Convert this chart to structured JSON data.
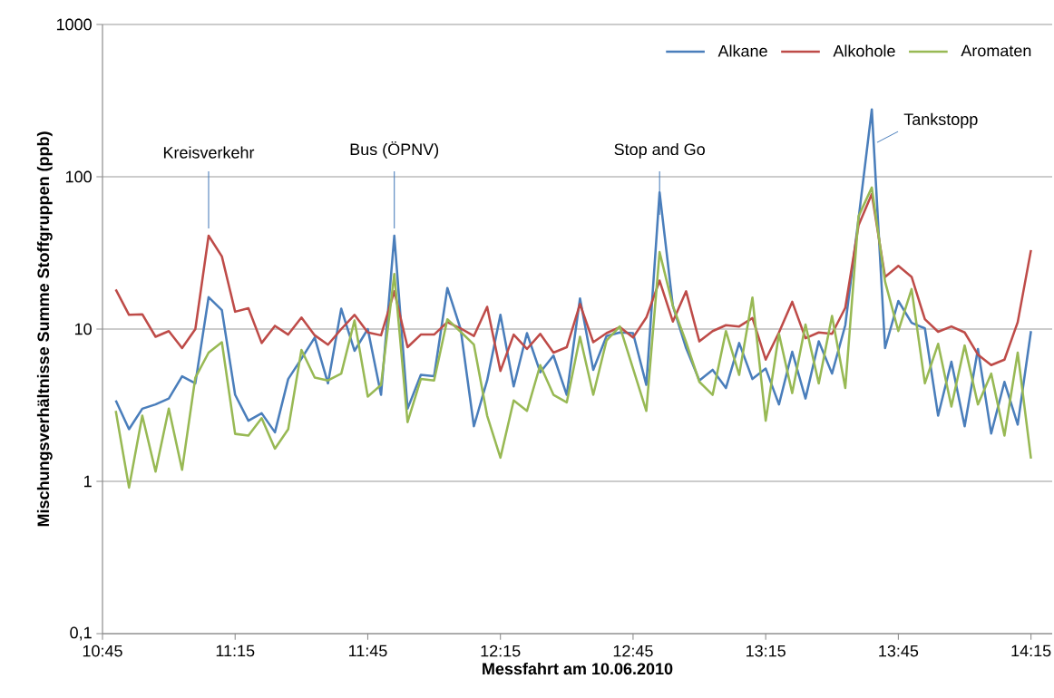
{
  "chart_data": {
    "type": "line",
    "xlabel": "Messfahrt am 10.06.2010",
    "ylabel": "Mischungsverhältnisse Summe Stoffgruppen (ppb)",
    "x": [
      10.8,
      10.85,
      10.9,
      10.95,
      11.0,
      11.05,
      11.1,
      11.15,
      11.2,
      11.25,
      11.3,
      11.35,
      11.4,
      11.45,
      11.5,
      11.55,
      11.6,
      11.65,
      11.7,
      11.75,
      11.8,
      11.85,
      11.9,
      11.95,
      12.0,
      12.05,
      12.1,
      12.15,
      12.2,
      12.25,
      12.3,
      12.35,
      12.4,
      12.45,
      12.5,
      12.55,
      12.6,
      12.65,
      12.7,
      12.75,
      12.8,
      12.85,
      12.9,
      12.95,
      13.0,
      13.05,
      13.1,
      13.15,
      13.2,
      13.25,
      13.3,
      13.35,
      13.4,
      13.45,
      13.5,
      13.55,
      13.6,
      13.65,
      13.7,
      13.75,
      13.8,
      13.85,
      13.9,
      13.95,
      14.0,
      14.05,
      14.1,
      14.15,
      14.2,
      14.25
    ],
    "series": [
      {
        "name": "Alkane",
        "color": "#4a7ebb",
        "values": [
          3.4,
          2.2,
          3.0,
          3.2,
          3.5,
          4.9,
          4.4,
          16.2,
          13.3,
          3.7,
          2.5,
          2.8,
          2.1,
          4.7,
          6.4,
          8.8,
          4.4,
          13.6,
          7.2,
          10,
          3.7,
          41,
          3.0,
          5.0,
          4.9,
          18.6,
          10,
          2.3,
          4.6,
          12.4,
          4.2,
          9.4,
          5.2,
          6.7,
          3.7,
          15.9,
          5.4,
          9.0,
          9.5,
          9.4,
          4.3,
          79,
          14.2,
          7.5,
          4.6,
          5.4,
          4.1,
          8.1,
          4.7,
          5.5,
          3.2,
          7.1,
          3.5,
          8.3,
          5.1,
          10.6,
          53,
          277,
          7.5,
          15.3,
          11,
          10.1,
          2.7,
          6.1,
          2.3,
          7.4,
          2.06,
          4.5,
          2.36,
          9.7
        ]
      },
      {
        "name": "Alkohole",
        "color": "#be4b48",
        "values": [
          18.2,
          12.4,
          12.5,
          8.9,
          9.7,
          7.5,
          10,
          41,
          30,
          13,
          13.7,
          8.1,
          10.5,
          9.2,
          11.9,
          9.1,
          7.9,
          10,
          12.4,
          9.5,
          9.1,
          17.7,
          7.6,
          9.2,
          9.2,
          11.1,
          10.1,
          9.0,
          14,
          5.3,
          9.2,
          7.4,
          9.3,
          7.0,
          7.6,
          14.6,
          8.2,
          9.4,
          10.3,
          8.8,
          11.9,
          20.8,
          11.2,
          17.7,
          8.3,
          9.7,
          10.6,
          10.4,
          11.8,
          6.3,
          9.5,
          15.1,
          8.7,
          9.5,
          9.3,
          13.8,
          48,
          77,
          22,
          26,
          22,
          11.6,
          9.6,
          10.4,
          9.5,
          6.8,
          5.8,
          6.3,
          11.1,
          33
        ]
      },
      {
        "name": "Aromaten",
        "color": "#98b954",
        "values": [
          2.9,
          0.91,
          2.7,
          1.16,
          3.0,
          1.19,
          4.8,
          7.0,
          8.2,
          2.05,
          2.0,
          2.6,
          1.64,
          2.2,
          7.3,
          4.8,
          4.6,
          5.1,
          11.4,
          3.6,
          4.3,
          23,
          2.45,
          4.7,
          4.6,
          11.6,
          9.6,
          7.9,
          2.7,
          1.43,
          3.4,
          2.9,
          5.8,
          3.7,
          3.3,
          8.9,
          3.7,
          8.4,
          10.4,
          5.5,
          2.9,
          32,
          14.2,
          8.2,
          4.5,
          3.7,
          9.7,
          5.0,
          16.1,
          2.5,
          9.3,
          3.8,
          10.7,
          4.4,
          12.2,
          4.1,
          55,
          85,
          20.5,
          9.7,
          18.3,
          4.4,
          8.0,
          3.1,
          7.8,
          3.2,
          5.1,
          2.0,
          7.0,
          1.41
        ]
      }
    ],
    "xlim": [
      10.75,
      14.33
    ],
    "xticks": [
      {
        "value": 10.75,
        "label": "10:45"
      },
      {
        "value": 11.25,
        "label": "11:15"
      },
      {
        "value": 11.75,
        "label": "11:45"
      },
      {
        "value": 12.25,
        "label": "12:15"
      },
      {
        "value": 12.75,
        "label": "12:45"
      },
      {
        "value": 13.25,
        "label": "13:15"
      },
      {
        "value": 13.75,
        "label": "13:45"
      },
      {
        "value": 14.25,
        "label": "14:15"
      }
    ],
    "ylim": [
      0.1,
      1000
    ],
    "yticks": [
      {
        "value": 0.1,
        "label": "0,1"
      },
      1,
      10,
      100,
      1000
    ],
    "log": "y",
    "grid": "y",
    "legend": "top right",
    "annotations": [
      {
        "text": "Kreisverkehr",
        "x": 11.15,
        "y": 41
      },
      {
        "text": "Bus (ÖPNV)",
        "x": 11.85,
        "y": 41
      },
      {
        "text": "Stop and Go",
        "x": 12.85,
        "y": 79
      },
      {
        "text": "Tankstopp",
        "x": 13.67,
        "y": 168
      }
    ]
  }
}
